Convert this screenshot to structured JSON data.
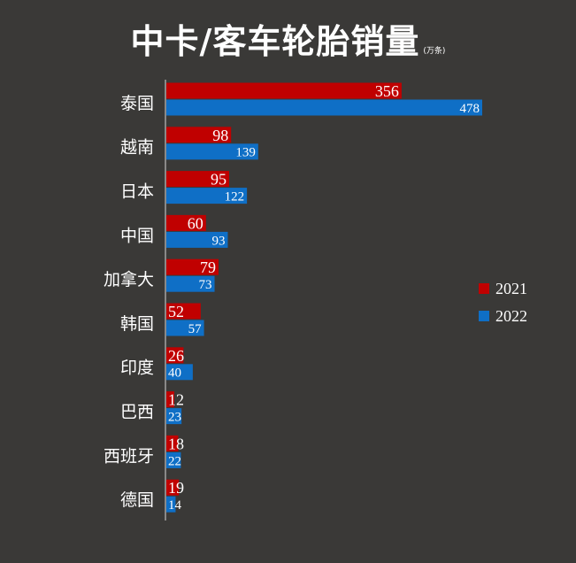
{
  "chart_data": {
    "type": "bar",
    "orientation": "horizontal",
    "title": "中卡/客车轮胎销量",
    "unit": "(万条)",
    "categories": [
      "泰国",
      "越南",
      "日本",
      "中国",
      "加拿大",
      "韩国",
      "印度",
      "巴西",
      "西班牙",
      "德国"
    ],
    "series": [
      {
        "name": "2021",
        "color": "#c00000",
        "values": [
          356,
          98,
          95,
          60,
          79,
          52,
          26,
          12,
          18,
          19
        ]
      },
      {
        "name": "2022",
        "color": "#0f6fc6",
        "values": [
          478,
          139,
          122,
          93,
          73,
          57,
          40,
          23,
          22,
          14
        ]
      }
    ],
    "xlim": [
      0,
      478
    ],
    "grid": false,
    "legend": "right",
    "colors": {
      "background": "#3a3937",
      "text": "#ffffff",
      "axis": "#d9d9d9"
    }
  }
}
